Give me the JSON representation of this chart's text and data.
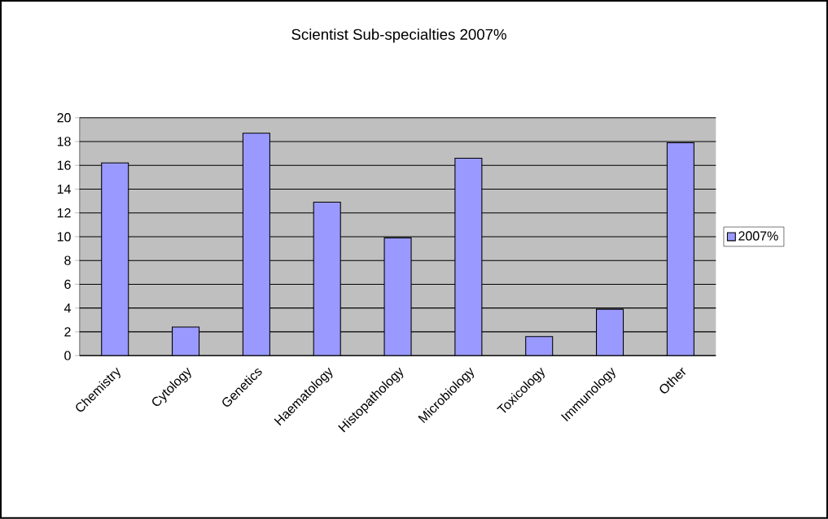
{
  "chart_data": {
    "type": "bar",
    "title": "Scientist Sub-specialties 2007%",
    "categories": [
      "Chemistry",
      "Cytology",
      "Genetics",
      "Haematology",
      "Histopathology",
      "Microbiology",
      "Toxicology",
      "Immunology",
      "Other"
    ],
    "series": [
      {
        "name": "2007%",
        "color": "#9999ff",
        "values": [
          16.2,
          2.4,
          18.7,
          12.9,
          9.9,
          16.6,
          1.6,
          3.9,
          17.9
        ]
      }
    ],
    "ylim": [
      0,
      20
    ],
    "yticks": [
      0,
      2,
      4,
      6,
      8,
      10,
      12,
      14,
      16,
      18,
      20
    ],
    "grid": "y",
    "legend": "right"
  }
}
